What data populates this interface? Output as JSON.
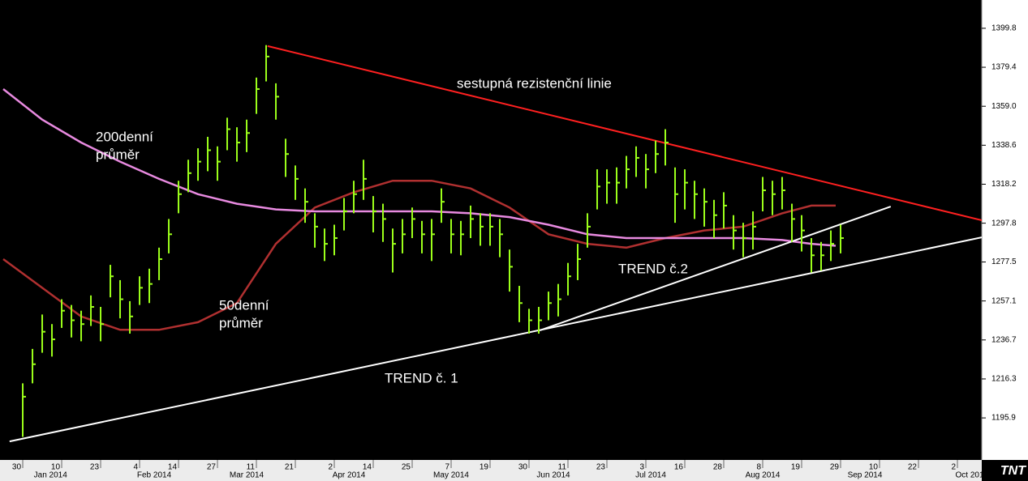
{
  "chart_data": {
    "type": "ohlc",
    "color": "#9cff1a",
    "x": [
      0,
      2,
      4,
      6,
      8,
      10,
      12,
      14,
      16,
      18,
      20,
      22,
      24,
      26,
      28,
      30,
      32,
      34,
      36,
      38,
      40,
      42,
      44,
      46,
      48,
      50,
      52,
      54,
      56,
      58,
      60,
      62,
      64,
      66,
      68,
      70,
      72,
      74,
      76,
      78,
      80,
      82,
      84,
      86,
      88,
      90,
      92,
      94,
      96,
      98,
      100,
      102,
      104,
      106,
      108,
      110,
      112,
      114,
      116,
      118,
      120,
      122,
      124,
      126,
      128,
      130,
      132,
      134,
      136,
      138,
      140,
      142,
      144,
      146,
      148,
      150,
      152,
      154,
      156,
      158,
      160,
      162,
      164,
      166,
      168
    ],
    "high": [
      1214,
      1232,
      1250,
      1245,
      1258,
      1255,
      1252,
      1260,
      1254,
      1276,
      1268,
      1257,
      1270,
      1274,
      1285,
      1300,
      1320,
      1331,
      1337,
      1343,
      1338,
      1353,
      1348,
      1352,
      1374,
      1391,
      1371,
      1342,
      1328,
      1316,
      1303,
      1295,
      1297,
      1311,
      1320,
      1331,
      1312,
      1308,
      1295,
      1300,
      1306,
      1299,
      1300,
      1316,
      1300,
      1299,
      1307,
      1303,
      1303,
      1300,
      1284,
      1265,
      1253,
      1254,
      1262,
      1266,
      1277,
      1287,
      1303,
      1326,
      1326,
      1327,
      1333,
      1338,
      1334,
      1341,
      1347,
      1327,
      1326,
      1320,
      1316,
      1310,
      1314,
      1302,
      1298,
      1304,
      1322,
      1320,
      1322,
      1308,
      1302,
      1290,
      1288,
      1294,
      1297
    ],
    "low": [
      1186,
      1214,
      1230,
      1228,
      1243,
      1238,
      1236,
      1244,
      1236,
      1259,
      1248,
      1240,
      1255,
      1256,
      1268,
      1282,
      1303,
      1314,
      1320,
      1325,
      1320,
      1336,
      1330,
      1335,
      1355,
      1372,
      1352,
      1322,
      1310,
      1298,
      1285,
      1278,
      1281,
      1294,
      1303,
      1310,
      1293,
      1288,
      1272,
      1282,
      1290,
      1282,
      1278,
      1298,
      1282,
      1281,
      1290,
      1286,
      1286,
      1280,
      1262,
      1246,
      1240,
      1240,
      1247,
      1249,
      1260,
      1268,
      1285,
      1305,
      1308,
      1308,
      1316,
      1322,
      1316,
      1324,
      1328,
      1298,
      1305,
      1300,
      1296,
      1290,
      1295,
      1284,
      1280,
      1284,
      1304,
      1302,
      1305,
      1288,
      1283,
      1272,
      1273,
      1278,
      1282
    ],
    "close": [
      1207,
      1224,
      1241,
      1237,
      1252,
      1247,
      1245,
      1254,
      1245,
      1270,
      1258,
      1249,
      1264,
      1266,
      1279,
      1292,
      1313,
      1324,
      1330,
      1336,
      1330,
      1347,
      1340,
      1345,
      1368,
      1385,
      1364,
      1334,
      1321,
      1309,
      1296,
      1287,
      1290,
      1304,
      1313,
      1321,
      1304,
      1300,
      1287,
      1292,
      1300,
      1292,
      1292,
      1309,
      1292,
      1292,
      1300,
      1296,
      1296,
      1292,
      1275,
      1256,
      1247,
      1247,
      1256,
      1258,
      1270,
      1279,
      1296,
      1317,
      1319,
      1319,
      1326,
      1332,
      1326,
      1334,
      1340,
      1313,
      1319,
      1313,
      1309,
      1302,
      1307,
      1294,
      1290,
      1296,
      1315,
      1313,
      1315,
      1300,
      1294,
      1281,
      1281,
      1287,
      1290
    ],
    "lines": [
      {
        "color": "#b03030",
        "x": [
          -4,
          4,
          12,
          20,
          28,
          36,
          44,
          52,
          60,
          68,
          76,
          84,
          92,
          100,
          108,
          116,
          124,
          132,
          140,
          148,
          156,
          162,
          167
        ],
        "values": [
          1279,
          1264,
          1249,
          1242,
          1242,
          1246,
          1256,
          1287,
          1306,
          1314,
          1320,
          1320,
          1316,
          1306,
          1292,
          1287,
          1285,
          1290,
          1294,
          1296,
          1303,
          1307,
          1307
        ]
      },
      {
        "color": "#e88ae0",
        "x": [
          -4,
          4,
          12,
          20,
          28,
          36,
          44,
          52,
          60,
          68,
          76,
          84,
          92,
          100,
          108,
          116,
          124,
          132,
          140,
          148,
          156,
          162,
          167
        ],
        "values": [
          1368,
          1352,
          1340,
          1330,
          1321,
          1313,
          1308,
          1305,
          1304,
          1304,
          1304,
          1304,
          1303,
          1301,
          1297,
          1292,
          1290,
          1290,
          1290,
          1290,
          1289,
          1287,
          1286
        ]
      }
    ],
    "trend_lines": [
      {
        "color": "#ff2020",
        "x": [
          50.3,
          197
        ],
        "values": [
          1390.5,
          1299.3
        ]
      },
      {
        "color": "#ffffff",
        "x": [
          -2.7,
          197
        ],
        "values": [
          1183.6,
          1290.4
        ]
      },
      {
        "color": "#ffffff",
        "x": [
          106.2,
          178.3
        ],
        "values": [
          1241.7,
          1306.5
        ]
      }
    ],
    "annotations": [
      "sestupná rezistenční linie",
      "200denní",
      "průměr",
      "50denní",
      "průměr",
      "TREND č.2",
      "TREND č. 1"
    ],
    "xlim": [
      -4.67,
      197
    ],
    "xticks": [
      {
        "value": 0,
        "label": "30"
      },
      {
        "value": 8,
        "label": "10"
      },
      {
        "value": 16,
        "label": "23"
      },
      {
        "value": 24,
        "label": "4"
      },
      {
        "value": 32,
        "label": "14"
      },
      {
        "value": 40,
        "label": "27"
      },
      {
        "value": 48,
        "label": "11"
      },
      {
        "value": 56,
        "label": "21"
      },
      {
        "value": 64,
        "label": "2"
      },
      {
        "value": 72,
        "label": "14"
      },
      {
        "value": 80,
        "label": "25"
      },
      {
        "value": 88,
        "label": "7"
      },
      {
        "value": 96,
        "label": "19"
      },
      {
        "value": 104,
        "label": "30"
      },
      {
        "value": 112,
        "label": "11"
      },
      {
        "value": 120,
        "label": "23"
      },
      {
        "value": 128,
        "label": "3"
      },
      {
        "value": 136,
        "label": "16"
      },
      {
        "value": 144,
        "label": "28"
      },
      {
        "value": 152,
        "label": "8"
      },
      {
        "value": 160,
        "label": "19"
      },
      {
        "value": 168,
        "label": "29"
      },
      {
        "value": 176,
        "label": "10"
      },
      {
        "value": 184,
        "label": "22"
      },
      {
        "value": 192,
        "label": "2"
      }
    ],
    "month_labels": [
      {
        "value": 5.7,
        "label": "Jan 2014"
      },
      {
        "value": 27,
        "label": "Feb 2014"
      },
      {
        "value": 46,
        "label": "Mar 2014"
      },
      {
        "value": 67,
        "label": "Apr 2014"
      },
      {
        "value": 88,
        "label": "May 2014"
      },
      {
        "value": 109,
        "label": "Jun 2014"
      },
      {
        "value": 129,
        "label": "Jul 2014"
      },
      {
        "value": 152,
        "label": "Aug 2014"
      },
      {
        "value": 173,
        "label": "Sep 2014"
      },
      {
        "value": 194.5,
        "label": "Oct 201"
      }
    ],
    "ylim": [
      1173.9,
      1414.6
    ],
    "yticks": [
      1195.9,
      1216.3,
      1236.7,
      1257.1,
      1277.5,
      1297.8,
      1318.2,
      1338.6,
      {
        "value": 1359,
        "label": "1359.0"
      },
      1379.4,
      1399.8
    ],
    "logo": "TNT"
  }
}
